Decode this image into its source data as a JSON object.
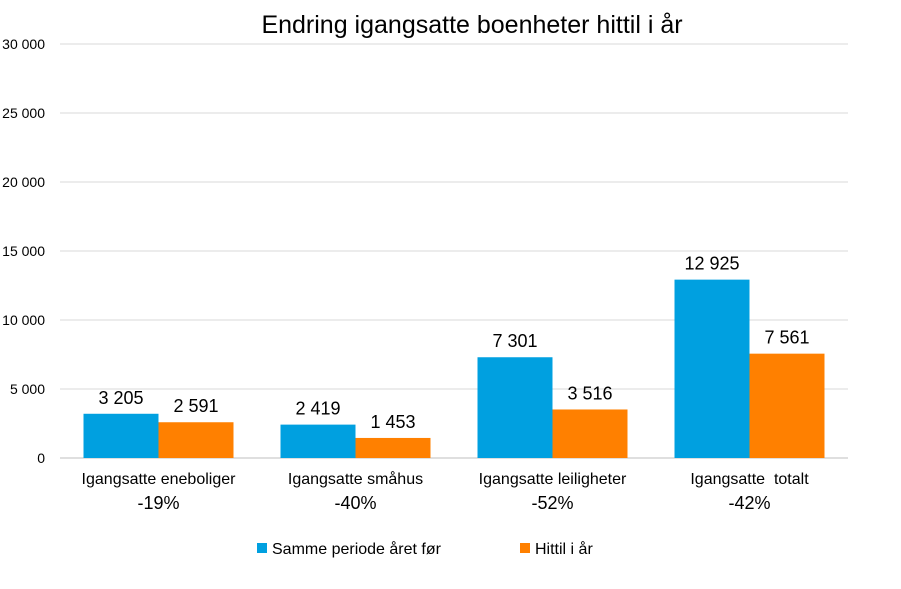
{
  "chart_data": {
    "type": "bar",
    "title": "Endring igangsatte boenheter hittil i år",
    "categories": [
      "Igangsatte eneboliger",
      "Igangsatte småhus",
      "Igangsatte leiligheter",
      "Igangsatte  totalt"
    ],
    "category_changes": [
      "-19%",
      "-40%",
      "-52%",
      "-42%"
    ],
    "series": [
      {
        "name": "Samme periode året før",
        "color": "#00a0e0",
        "values": [
          3205,
          2419,
          7301,
          12925
        ],
        "labels": [
          "3 205",
          "2 419",
          "7 301",
          "12 925"
        ]
      },
      {
        "name": "Hittil i år",
        "color": "#ff8000",
        "values": [
          2591,
          1453,
          3516,
          7561
        ],
        "labels": [
          "2 591",
          "1 453",
          "3 516",
          "7 561"
        ]
      }
    ],
    "ylim": [
      0,
      30000
    ],
    "yticks": [
      0,
      5000,
      10000,
      15000,
      20000,
      25000,
      30000
    ],
    "ytick_labels": [
      "0",
      "5 000",
      "10 000",
      "15 000",
      "20 000",
      "25 000",
      "30 000"
    ],
    "grid": true,
    "legend": "bottom"
  }
}
